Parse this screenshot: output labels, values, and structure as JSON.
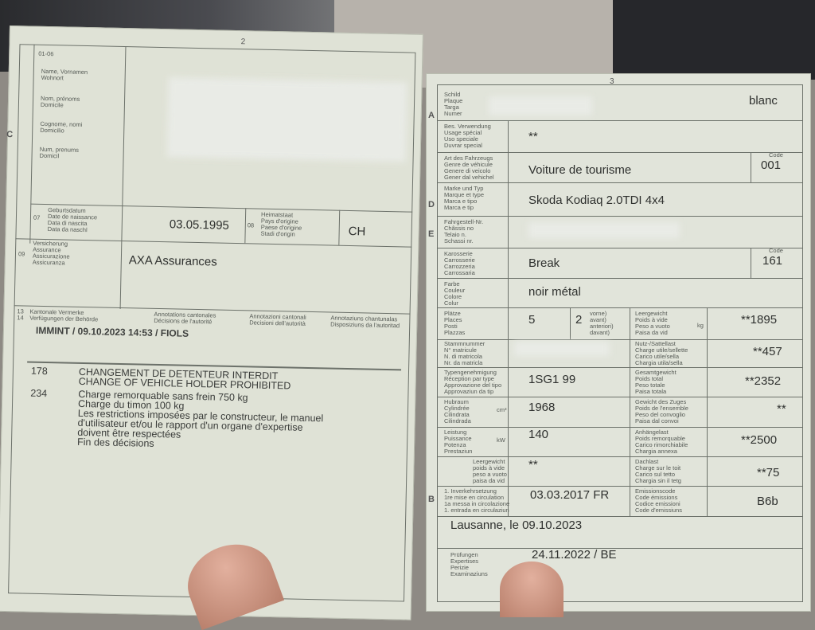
{
  "left_page": {
    "page_number": "2",
    "section_code": "01-06",
    "side_letter": "C",
    "holder_labels": [
      "Name, Vornamen\nWohnort",
      "Nom, prénoms\nDomicile",
      "Cognome, nomi\nDomicilio",
      "Num, prenums\nDomicil"
    ],
    "birthdate_label": "Geburtsdatum\nDate de naissance\nData di nascita\nData da naschl",
    "birthdate_code": "07",
    "birthdate": "03.05.1995",
    "origin_code": "08",
    "origin_label": "Heimatstaat\nPays d'origine\nPaese d'origine\nStadi d'origin",
    "origin": "CH",
    "insurance_code": "09",
    "insurance_label": "Versicherung\nAssurance\nAssicurazione\nAssicuranza",
    "insurance": "AXA Assurances",
    "annotations_codes": "13\n14",
    "annotations_headers": [
      "Kantonale Vermerke\nVerfügungen der Behörde",
      "Annotations cantonales\nDécisions de l'autorité",
      "Annotazioni cantonali\nDecisioni dell'autorità",
      "Annotaziuns chantunalas\nDisposiziuns da l'autoritad"
    ],
    "annotation_line": "IMMINT / 09.10.2023 14:53 / FIOLS",
    "decisions": [
      {
        "code": "178",
        "lines": [
          "CHANGEMENT DE DETENTEUR INTERDIT",
          "CHANGE OF VEHICLE HOLDER PROHIBITED"
        ]
      },
      {
        "code": "234",
        "lines": [
          "Charge remorquable sans frein 750 kg",
          "Charge du timon 100 kg",
          "Les restrictions imposées par le constructeur, le manuel",
          "d'utilisateur et/ou le rapport d'un organe d'expertise",
          "doivent être respectées",
          "Fin des décisions"
        ]
      }
    ]
  },
  "right_page": {
    "page_number": "3",
    "side_letters": {
      "a": "A",
      "d": "D",
      "e": "E",
      "b": "B"
    },
    "plate_label": "Schild\nPlaque\nTarga\nNumer",
    "plate_color": "blanc",
    "usage_label": "Bes. Verwendung\nUsage spécial\nUso speciale\nDuvrar special",
    "usage": "**",
    "type_label": "Art des Fahrzeugs\nGenre de véhicule\nGenere di veicolo\nGener dal vehichel",
    "type": "Voiture de tourisme",
    "code_label": "Code",
    "type_code": "001",
    "make_label": "Marke und Typ\nMarque et type\nMarca e tipo\nMarca e tip",
    "make": "Skoda Kodiaq 2.0TDI 4x4",
    "chassis_label": "Fahrgestell-Nr.\nChâssis no\nTelaio n.\nSchassi nr.",
    "body_label": "Karosserie\nCarrosserie\nCarrozzeria\nCarrossaria",
    "body": "Break",
    "body_code": "161",
    "color_label": "Farbe\nCouleur\nColore\nColur",
    "color": "noir métal",
    "seats_label": "Plätze\nPlaces\nPosti\nPlazzas",
    "seats": "5",
    "front_seats": "2",
    "front_label": "vorne)\navant)\nanteriori)\ndavant)",
    "empty_weight_label": "Leergewicht\nPoids à vide\nPeso a vuoto\nPaisa da vid",
    "empty_weight": "**1895",
    "matricule_label": "Stammnummer\nN° matricule\nN. di matricola\nNr. da matricla",
    "payload_label": "Nutz-/Sattellast\nCharge utile/sellette\nCarico utile/sella\nChargia utila/sella",
    "payload": "**457",
    "approval_label": "Typengenehmigung\nRéception par type\nApprovazione del tipo\nApprovaziun da tip",
    "approval": "1SG1 99",
    "total_weight_label": "Gesamtgewicht\nPoids total\nPeso totale\nPaisa totala",
    "total_weight": "**2352",
    "displacement_label": "Hubraum\nCylindrée\nCilindrata\nCilindrada",
    "displacement": "1968",
    "combo_weight_label": "Gewicht des Zuges\nPoids de l'ensemble\nPeso del convoglio\nPaisa dal convoi",
    "combo_weight": "**",
    "power_label": "Leistung\nPuissance\nPotenza\nPrestaziun",
    "power": "140",
    "towing_label": "Anhängelast\nPoids remorquable\nCarico rimorchiabile\nChargia annexa",
    "towing": "**2500",
    "kwkg_label": "Leergewicht\npoids à vide\npeso a vuoto\npaisa da vid",
    "kwkg": "**",
    "roof_label": "Dachlast\nCharge sur le toit\nCarico sul tetto\nChargia sin il tetg",
    "roof": "**75",
    "first_reg_label": "1. Inverkehrsetzung\n1re mise en circulation\n1a messa in circolazione\n1. entrada en circulaziun",
    "first_reg": "03.03.2017 FR",
    "emission_label": "Emissionscode\nCode émissions\nCodice emissioni\nCode d'emissiuns",
    "emission": "B6b",
    "place_date": "Lausanne, le 09.10.2023",
    "inspection_label": "Prüfungen\nExpertises\nPerizie\nExaminaziuns",
    "inspection": "24.11.2022 / BE",
    "unit_kg": "kg",
    "unit_kw": "kW",
    "unit_cm3": "cm³"
  }
}
